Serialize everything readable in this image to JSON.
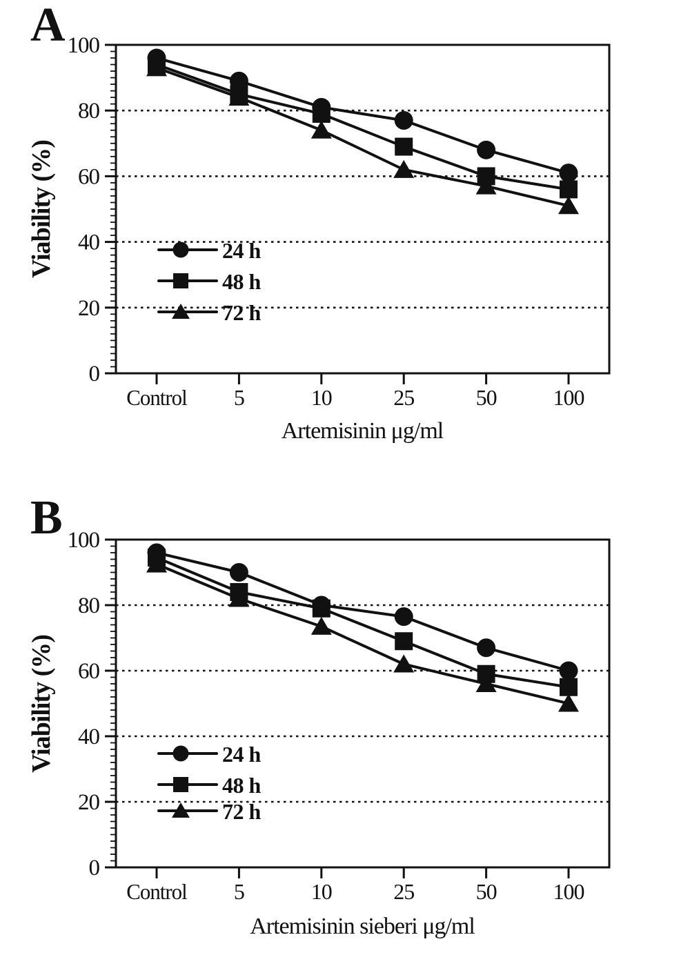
{
  "figure": {
    "background": "#ffffff",
    "ink_color": "#111111"
  },
  "chart_data": [
    {
      "type": "line",
      "panel_label": "A",
      "xlabel": "Artemisinin μg/ml",
      "ylabel": "Viability (%)",
      "categories": [
        "Control",
        "5",
        "10",
        "25",
        "50",
        "100"
      ],
      "ylim": [
        0,
        100
      ],
      "yticks": [
        0,
        20,
        40,
        60,
        80,
        100
      ],
      "minor_tick_step": 2,
      "gridlines_y": [
        20,
        40,
        60,
        80
      ],
      "grid_style": "dotted",
      "legend_position": "inside-lower-left",
      "series": [
        {
          "name": "24 h",
          "marker": "circle",
          "values": [
            96,
            89,
            81,
            77,
            68,
            61
          ]
        },
        {
          "name": "48 h",
          "marker": "square",
          "values": [
            94,
            85,
            79,
            69,
            60,
            56
          ]
        },
        {
          "name": "72 h",
          "marker": "triangle",
          "values": [
            93,
            84,
            74,
            62,
            57,
            51
          ]
        }
      ]
    },
    {
      "type": "line",
      "panel_label": "B",
      "xlabel": "Artemisinin sieberi μg/ml",
      "ylabel": "Viability (%)",
      "categories": [
        "Control",
        "5",
        "10",
        "25",
        "50",
        "100"
      ],
      "ylim": [
        0,
        100
      ],
      "yticks": [
        0,
        20,
        40,
        60,
        80,
        100
      ],
      "minor_tick_step": 2,
      "gridlines_y": [
        20,
        40,
        60,
        80
      ],
      "grid_style": "dotted",
      "legend_position": "inside-lower-left",
      "series": [
        {
          "name": "24 h",
          "marker": "circle",
          "values": [
            96,
            90,
            80,
            76.5,
            67,
            60
          ]
        },
        {
          "name": "48 h",
          "marker": "square",
          "values": [
            94.5,
            84,
            79,
            69,
            59,
            55
          ]
        },
        {
          "name": "72 h",
          "marker": "triangle",
          "values": [
            92.5,
            82,
            73.5,
            62,
            56,
            50
          ]
        }
      ]
    }
  ]
}
